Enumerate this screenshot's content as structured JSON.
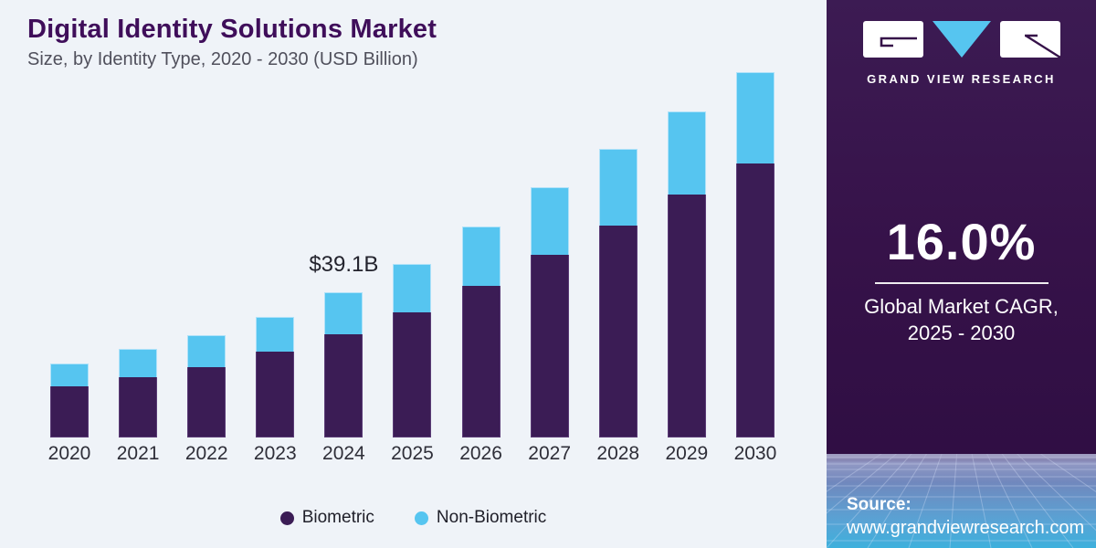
{
  "header": {
    "title": "Digital Identity Solutions Market",
    "subtitle": "Size, by Identity Type, 2020 - 2030 (USD Billion)"
  },
  "chart_data": {
    "type": "bar",
    "stacked": true,
    "title": "Digital Identity Solutions Market Size, by Identity Type, 2020 - 2030 (USD Billion)",
    "categories": [
      "2020",
      "2021",
      "2022",
      "2023",
      "2024",
      "2025",
      "2026",
      "2027",
      "2028",
      "2029",
      "2030"
    ],
    "series": [
      {
        "name": "Biometric",
        "color": "#3b1c55",
        "values": [
          13.8,
          16.2,
          18.9,
          23.1,
          27.8,
          33.7,
          40.8,
          49.2,
          57.0,
          65.4,
          73.8
        ]
      },
      {
        "name": "Non-Biometric",
        "color": "#56c5f0",
        "values": [
          6.1,
          7.7,
          8.6,
          9.4,
          11.3,
          13.0,
          16.0,
          18.2,
          20.7,
          22.4,
          24.6
        ]
      }
    ],
    "annotation": {
      "category": "2024",
      "text": "$39.1B"
    },
    "ylabel": "USD Billion",
    "ylim": [
      0,
      100
    ],
    "grid": false,
    "legend_position": "bottom"
  },
  "sidebar": {
    "brand": "GRAND VIEW RESEARCH",
    "stat_value": "16.0%",
    "stat_caption_line1": "Global Market CAGR,",
    "stat_caption_line2": "2025 - 2030",
    "source_label": "Source:",
    "source_url": "www.grandviewresearch.com"
  },
  "colors": {
    "background": "#eff3f8",
    "title_purple": "#3f0e5a",
    "bar_biometric": "#3b1c55",
    "bar_non_biometric": "#56c5f0",
    "sidebar_purple": "#361249",
    "mesh_blue": "#3eb0dc"
  }
}
